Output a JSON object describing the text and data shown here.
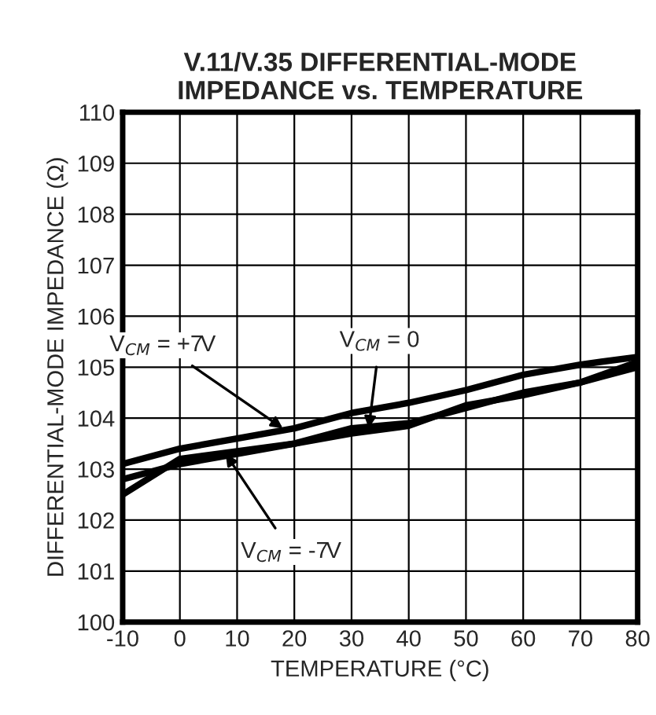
{
  "chart_data": {
    "type": "line",
    "title": "V.11/V.35 DIFFERENTIAL-MODE\nIMPEDANCE vs. TEMPERATURE",
    "xlabel": "TEMPERATURE (°C)",
    "ylabel": "DIFFERENTIAL-MODE IMPEDANCE (Ω)",
    "x": [
      -10,
      0,
      10,
      20,
      30,
      40,
      50,
      60,
      70,
      80
    ],
    "series": [
      {
        "color": "#000000",
        "values": [
          103.1,
          103.4,
          103.6,
          103.8,
          104.1,
          104.3,
          104.55,
          104.85,
          105.05,
          105.2
        ]
      },
      {
        "color": "#000000",
        "values": [
          102.8,
          103.1,
          103.3,
          103.5,
          103.8,
          103.9,
          104.2,
          104.5,
          104.7,
          105.1
        ]
      },
      {
        "color": "#000000",
        "values": [
          102.5,
          103.2,
          103.35,
          103.5,
          103.7,
          103.85,
          104.25,
          104.45,
          104.7,
          105.0
        ]
      }
    ],
    "annotations": [
      {
        "text": "V$_{CM}$ = +7V",
        "x": 18,
        "y": 103.8
      },
      {
        "text": "V$_{CM}$ = 0",
        "x": 33,
        "y": 103.8
      },
      {
        "text": "V$_{CM}$ = -7V",
        "x": 8,
        "y": 103.3
      }
    ],
    "xlim": [
      -10,
      80
    ],
    "xticks": [
      -10,
      0,
      10,
      20,
      30,
      40,
      50,
      60,
      70,
      80
    ],
    "ylim": [
      100,
      110
    ],
    "yticks": [
      100,
      101,
      102,
      103,
      104,
      105,
      106,
      107,
      108,
      109,
      110
    ],
    "grid": true,
    "legend": false
  }
}
